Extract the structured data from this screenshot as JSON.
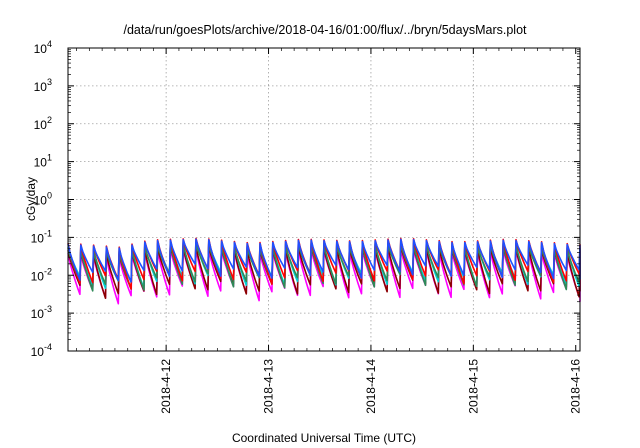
{
  "chart_data": {
    "type": "line",
    "title": "/data/run/goesPlots/archive/2018-04-16/01:00/flux/../bryn/5daysMars.plot",
    "xlabel": "Coordinated Universal Time (UTC)",
    "ylabel": "cGy/day",
    "y_scale": "log",
    "ylim": [
      0.0001,
      10000
    ],
    "y_ticks": [
      {
        "base": "10",
        "exp": "-4"
      },
      {
        "base": "10",
        "exp": "-3"
      },
      {
        "base": "10",
        "exp": "-2"
      },
      {
        "base": "10",
        "exp": "-1"
      },
      {
        "base": "10",
        "exp": "0"
      },
      {
        "base": "10",
        "exp": "1"
      },
      {
        "base": "10",
        "exp": "2"
      },
      {
        "base": "10",
        "exp": "3"
      },
      {
        "base": "10",
        "exp": "4"
      }
    ],
    "x_range_days": [
      "2018-04-11 01:00",
      "2018-04-16 01:00"
    ],
    "x_ticks": [
      "2018-4-12",
      "2018-4-13",
      "2018-4-14",
      "2018-4-15",
      "2018-4-16"
    ],
    "grid": true,
    "legend": "none",
    "cycle_hours": 3,
    "series": [
      {
        "color": "#ff00ff",
        "peak_mult": 0.55,
        "trough_mult": 0.045
      },
      {
        "color": "#8b0000",
        "peak_mult": 0.65,
        "trough_mult": 0.06
      },
      {
        "color": "#00ced1",
        "peak_mult": 0.8,
        "trough_mult": 0.1
      },
      {
        "color": "#2e8b57",
        "peak_mult": 0.75,
        "trough_mult": 0.09
      },
      {
        "color": "#ff0000",
        "peak_mult": 1.0,
        "trough_mult": 0.12
      },
      {
        "color": "#1e50ff",
        "peak_mult": 0.95,
        "trough_mult": 0.16
      }
    ],
    "envelope_peaks": [
      {
        "day": 0.0,
        "value": 0.07
      },
      {
        "day": 0.5,
        "value": 0.055
      },
      {
        "day": 0.8,
        "value": 0.085
      },
      {
        "day": 1.3,
        "value": 0.095
      },
      {
        "day": 1.8,
        "value": 0.07
      },
      {
        "day": 2.3,
        "value": 0.09
      },
      {
        "day": 2.8,
        "value": 0.08
      },
      {
        "day": 3.3,
        "value": 0.095
      },
      {
        "day": 3.8,
        "value": 0.075
      },
      {
        "day": 4.3,
        "value": 0.09
      },
      {
        "day": 4.8,
        "value": 0.07
      },
      {
        "day": 5.0,
        "value": 0.065
      }
    ]
  }
}
